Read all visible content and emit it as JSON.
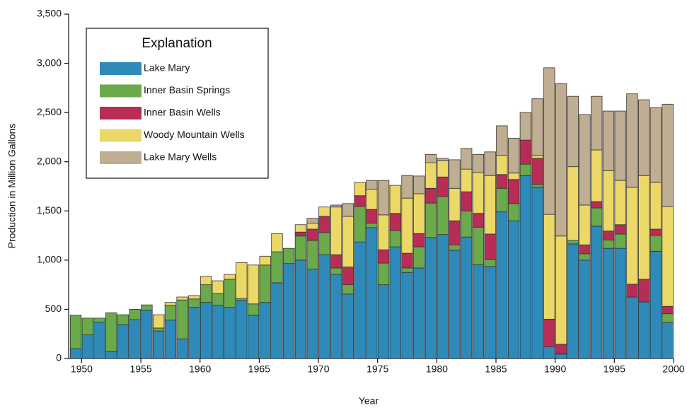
{
  "chart_data": {
    "type": "stacked-bar",
    "x_label": "Year",
    "y_label": "Production in Million Gallons",
    "legend_title": "Explanation",
    "legend": "upper left",
    "x": [
      1949,
      1950,
      1951,
      1952,
      1953,
      1954,
      1955,
      1956,
      1957,
      1958,
      1959,
      1960,
      1961,
      1962,
      1963,
      1964,
      1965,
      1966,
      1967,
      1968,
      1969,
      1970,
      1971,
      1972,
      1973,
      1974,
      1975,
      1976,
      1977,
      1978,
      1979,
      1980,
      1981,
      1982,
      1983,
      1984,
      1985,
      1986,
      1987,
      1988,
      1989,
      1990,
      1991,
      1992,
      1993,
      1994,
      1995,
      1996,
      1997,
      1998,
      1999
    ],
    "xlim": [
      1948.9,
      2000
    ],
    "xticks": [
      1950,
      1955,
      1960,
      1965,
      1970,
      1975,
      1980,
      1985,
      1990,
      1995,
      2000
    ],
    "ylim": [
      0,
      3500
    ],
    "yticks": [
      0,
      500,
      {
        "value": 1000,
        "label": "1,000"
      },
      {
        "value": 1500,
        "label": "1,500"
      },
      {
        "value": 2000,
        "label": "2,000"
      },
      {
        "value": 2500,
        "label": "2,500"
      },
      {
        "value": 3000,
        "label": "3,000"
      },
      {
        "value": 3500,
        "label": "3,500"
      }
    ],
    "series": [
      {
        "name": "Lake Mary",
        "color": "#2e8ab9",
        "values": [
          100,
          240,
          370,
          70,
          345,
          395,
          490,
          280,
          390,
          200,
          520,
          570,
          540,
          520,
          590,
          440,
          570,
          770,
          965,
          1000,
          910,
          1055,
          855,
          655,
          1185,
          1330,
          750,
          1135,
          875,
          920,
          1230,
          1260,
          1100,
          1235,
          955,
          935,
          1490,
          1400,
          1860,
          1740,
          120,
          45,
          1165,
          1000,
          1345,
          1120,
          1120,
          625,
          575,
          1090,
          365
        ]
      },
      {
        "name": "Inner Basin Springs",
        "color": "#6aaa4a",
        "values": [
          340,
          170,
          40,
          395,
          100,
          105,
          55,
          30,
          150,
          395,
          85,
          180,
          120,
          285,
          20,
          115,
          380,
          315,
          155,
          245,
          290,
          225,
          65,
          95,
          360,
          45,
          220,
          165,
          45,
          215,
          350,
          385,
          55,
          265,
          380,
          70,
          240,
          175,
          115,
          30,
          0,
          5,
          35,
          65,
          185,
          85,
          145,
          0,
          0,
          160,
          90
        ]
      },
      {
        "name": "Inner Basin Wells",
        "color": "#b72d56",
        "values": [
          0,
          0,
          0,
          0,
          0,
          0,
          0,
          0,
          0,
          0,
          0,
          0,
          0,
          0,
          0,
          0,
          0,
          0,
          0,
          40,
          115,
          165,
          135,
          180,
          110,
          140,
          135,
          175,
          150,
          135,
          150,
          200,
          245,
          195,
          140,
          260,
          140,
          245,
          245,
          265,
          280,
          95,
          0,
          90,
          65,
          90,
          95,
          130,
          230,
          65,
          75
        ]
      },
      {
        "name": "Woody Mountain Wells",
        "color": "#ecd867",
        "values": [
          0,
          0,
          0,
          0,
          0,
          0,
          0,
          135,
          30,
          30,
          35,
          85,
          130,
          50,
          365,
          395,
          90,
          185,
          0,
          75,
          60,
          95,
          485,
          515,
          135,
          205,
          355,
          285,
          560,
          405,
          260,
          165,
          330,
          230,
          415,
          595,
          195,
          65,
          0,
          30,
          1065,
          1100,
          750,
          405,
          525,
          615,
          450,
          985,
          1055,
          475,
          1015
        ]
      },
      {
        "name": "Lake Mary Wells",
        "color": "#bfae92",
        "values": [
          0,
          0,
          0,
          0,
          0,
          0,
          0,
          0,
          0,
          0,
          0,
          0,
          0,
          0,
          0,
          0,
          0,
          0,
          0,
          0,
          50,
          0,
          20,
          130,
          0,
          90,
          350,
          0,
          230,
          180,
          85,
          25,
          290,
          210,
          185,
          240,
          300,
          355,
          280,
          575,
          1490,
          1550,
          715,
          920,
          545,
          605,
          705,
          950,
          770,
          760,
          1040
        ]
      }
    ]
  }
}
